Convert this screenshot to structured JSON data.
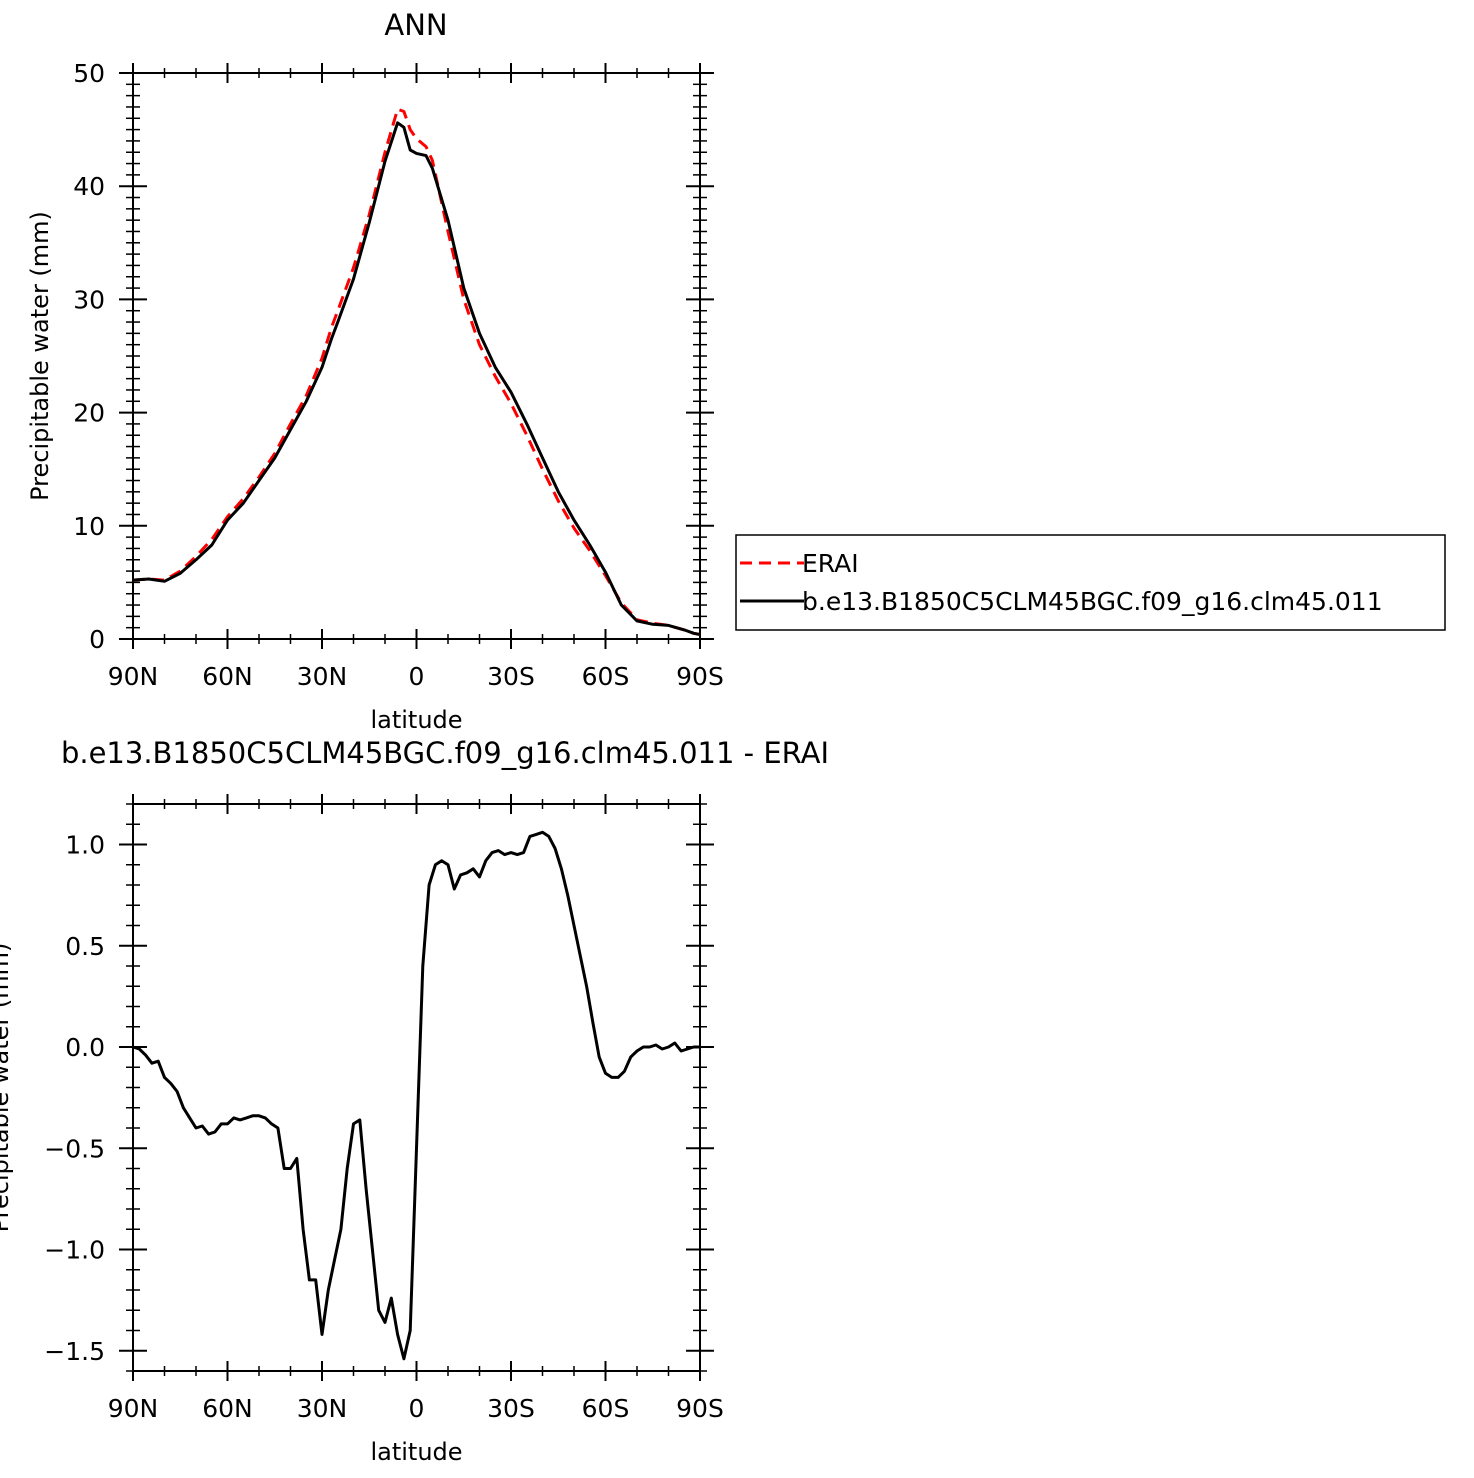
{
  "chart_data": [
    {
      "type": "line",
      "title": "ANN",
      "xlabel": "latitude",
      "ylabel": "Precipitable water (mm)",
      "xlim": [
        90,
        -90
      ],
      "ylim": [
        0,
        50
      ],
      "x_ticks": [
        90,
        60,
        30,
        0,
        -30,
        -60,
        -90
      ],
      "x_tick_labels": [
        "90N",
        "60N",
        "30N",
        "0",
        "30S",
        "60S",
        "90S"
      ],
      "y_ticks": [
        0,
        10,
        20,
        30,
        40,
        50
      ],
      "y_tick_labels": [
        "0",
        "10",
        "20",
        "30",
        "40",
        "50"
      ],
      "legend_position": "right",
      "series": [
        {
          "name": "ERAI",
          "color": "#ff0000",
          "dash": "dashed",
          "x": [
            90,
            85,
            80,
            75,
            70,
            65,
            60,
            55,
            50,
            45,
            40,
            35,
            30,
            27,
            25,
            20,
            15,
            10,
            6,
            4,
            2,
            0,
            -3,
            -5,
            -10,
            -15,
            -20,
            -25,
            -30,
            -35,
            -40,
            -45,
            -50,
            -55,
            -60,
            -65,
            -70,
            -75,
            -80,
            -85,
            -88,
            -90
          ],
          "y": [
            5.2,
            5.3,
            5.2,
            6.0,
            7.3,
            8.8,
            10.8,
            12.4,
            14.3,
            16.4,
            19.0,
            21.5,
            24.8,
            27.5,
            29.0,
            32.8,
            37.5,
            43.0,
            46.8,
            46.6,
            45.0,
            44.2,
            43.5,
            42.3,
            36.0,
            30.0,
            26.0,
            23.2,
            20.8,
            18.0,
            15.0,
            12.2,
            9.8,
            7.8,
            5.6,
            3.2,
            1.7,
            1.4,
            1.2,
            0.8,
            0.5,
            0.4
          ]
        },
        {
          "name": "b.e13.B1850C5CLM45BGC.f09_g16.clm45.011",
          "color": "#000000",
          "dash": "solid",
          "x": [
            90,
            85,
            80,
            75,
            70,
            65,
            60,
            55,
            50,
            45,
            40,
            35,
            30,
            27,
            25,
            20,
            15,
            10,
            6,
            4,
            2,
            0,
            -3,
            -5,
            -10,
            -15,
            -20,
            -25,
            -30,
            -35,
            -40,
            -45,
            -50,
            -55,
            -60,
            -65,
            -70,
            -75,
            -80,
            -85,
            -88,
            -90
          ],
          "y": [
            5.2,
            5.3,
            5.1,
            5.8,
            7.0,
            8.3,
            10.5,
            12.0,
            14.0,
            16.0,
            18.5,
            21.0,
            24.0,
            26.5,
            28.0,
            31.8,
            36.8,
            42.2,
            45.6,
            45.2,
            43.2,
            42.9,
            42.7,
            41.6,
            37.0,
            31.0,
            27.0,
            24.0,
            21.8,
            19.0,
            16.0,
            13.0,
            10.5,
            8.3,
            5.9,
            3.0,
            1.6,
            1.3,
            1.2,
            0.8,
            0.5,
            0.4
          ]
        }
      ]
    },
    {
      "type": "line",
      "title": "b.e13.B1850C5CLM45BGC.f09_g16.clm45.011 - ERAI",
      "xlabel": "latitude",
      "ylabel": "Precipitable water (mm)",
      "xlim": [
        90,
        -90
      ],
      "ylim": [
        -1.6,
        1.2
      ],
      "x_ticks": [
        90,
        60,
        30,
        0,
        -30,
        -60,
        -90
      ],
      "x_tick_labels": [
        "90N",
        "60N",
        "30N",
        "0",
        "30S",
        "60S",
        "90S"
      ],
      "y_ticks": [
        1.0,
        0.5,
        0.0,
        -0.5,
        -1.0,
        -1.5
      ],
      "y_tick_labels": [
        "1.0",
        "0.5",
        "0.0",
        "−0.5",
        "−1.0",
        "−1.5"
      ],
      "series": [
        {
          "color": "#000000",
          "dash": "solid",
          "x": [
            90,
            88,
            86,
            84,
            82,
            80,
            78,
            76,
            74,
            72,
            70,
            68,
            66,
            64,
            62,
            60,
            58,
            56,
            54,
            52,
            50,
            48,
            46,
            44,
            42,
            40,
            38,
            36,
            34,
            32,
            30,
            28,
            26,
            24,
            22,
            20,
            18,
            16,
            14,
            12,
            10,
            8,
            6,
            4,
            2,
            0,
            -2,
            -4,
            -6,
            -8,
            -10,
            -12,
            -14,
            -16,
            -18,
            -20,
            -22,
            -24,
            -26,
            -28,
            -30,
            -32,
            -34,
            -36,
            -38,
            -40,
            -42,
            -44,
            -46,
            -48,
            -50,
            -52,
            -54,
            -56,
            -58,
            -60,
            -62,
            -64,
            -66,
            -68,
            -70,
            -72,
            -74,
            -76,
            -78,
            -80,
            -82,
            -84,
            -86,
            -88,
            -90
          ],
          "y": [
            0.0,
            -0.01,
            -0.04,
            -0.08,
            -0.07,
            -0.15,
            -0.18,
            -0.22,
            -0.3,
            -0.35,
            -0.4,
            -0.39,
            -0.43,
            -0.42,
            -0.38,
            -0.38,
            -0.35,
            -0.36,
            -0.35,
            -0.34,
            -0.34,
            -0.35,
            -0.38,
            -0.4,
            -0.6,
            -0.6,
            -0.55,
            -0.9,
            -1.15,
            -1.15,
            -1.42,
            -1.2,
            -1.05,
            -0.9,
            -0.6,
            -0.38,
            -0.36,
            -0.7,
            -1.0,
            -1.3,
            -1.36,
            -1.24,
            -1.42,
            -1.54,
            -1.4,
            -0.5,
            0.4,
            0.8,
            0.9,
            0.92,
            0.9,
            0.78,
            0.85,
            0.86,
            0.88,
            0.84,
            0.92,
            0.96,
            0.97,
            0.95,
            0.96,
            0.95,
            0.96,
            1.04,
            1.05,
            1.06,
            1.04,
            0.98,
            0.88,
            0.75,
            0.6,
            0.45,
            0.3,
            0.12,
            -0.05,
            -0.13,
            -0.15,
            -0.15,
            -0.12,
            -0.05,
            -0.02,
            0.0,
            0.0,
            0.01,
            -0.01,
            0.0,
            0.02,
            -0.02,
            -0.01,
            0.0,
            0.0
          ]
        }
      ]
    }
  ]
}
